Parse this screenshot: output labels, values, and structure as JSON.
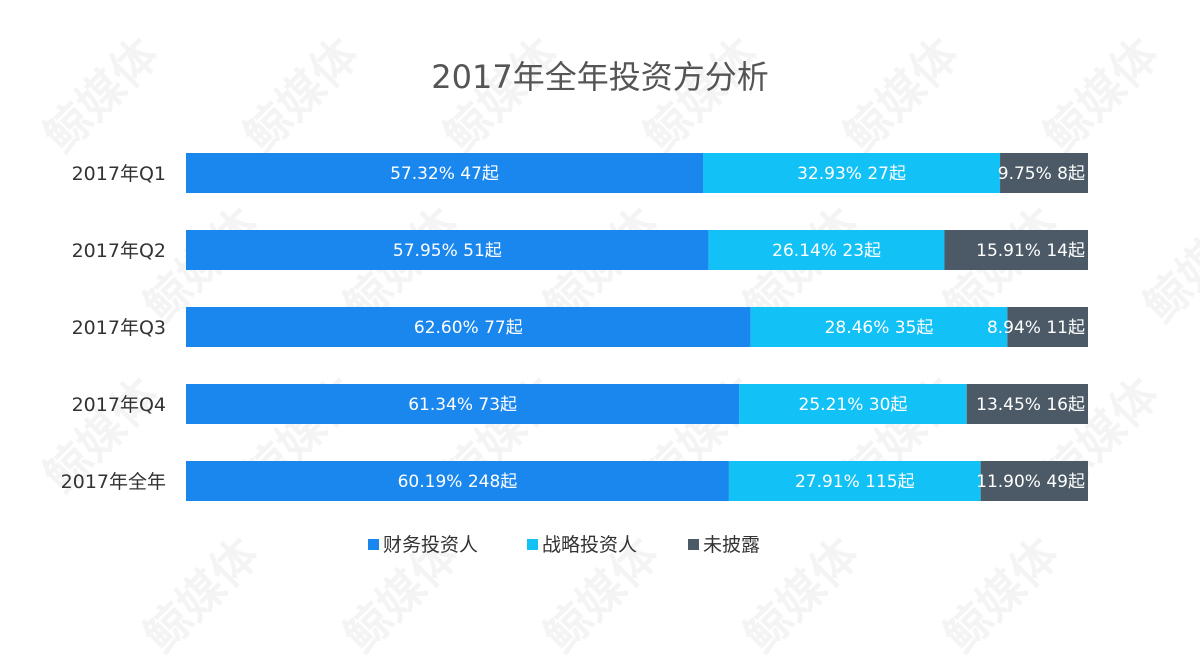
{
  "watermark_text": "鲸媒体",
  "chart_data": {
    "type": "bar",
    "orientation": "horizontal",
    "stacked": true,
    "title": "2017年全年投资方分析",
    "categories": [
      "2017年Q1",
      "2017年Q2",
      "2017年Q3",
      "2017年Q4",
      "2017年全年"
    ],
    "series": [
      {
        "name": "财务投资人",
        "color": "#1a87ee",
        "values": [
          57.32,
          57.95,
          62.6,
          61.34,
          60.19
        ],
        "labels": [
          "57.32% 47起",
          "57.95% 51起",
          "62.60% 77起",
          "61.34% 73起",
          "60.19% 248起"
        ]
      },
      {
        "name": "战略投资人",
        "color": "#12c1f5",
        "values": [
          32.93,
          26.14,
          28.46,
          25.21,
          27.91
        ],
        "labels": [
          "32.93% 27起",
          "26.14% 23起",
          "28.46% 35起",
          "25.21% 30起",
          "27.91% 115起"
        ]
      },
      {
        "name": "未披露",
        "color": "#4b5a66",
        "values": [
          9.75,
          15.91,
          8.94,
          13.45,
          11.9
        ],
        "labels": [
          "9.75%  8起",
          "15.91% 14起",
          "8.94%  11起",
          "13.45% 16起",
          "11.90% 49起"
        ]
      }
    ],
    "xlim": [
      0,
      100
    ],
    "grid": false,
    "legend": "bottom-center"
  }
}
